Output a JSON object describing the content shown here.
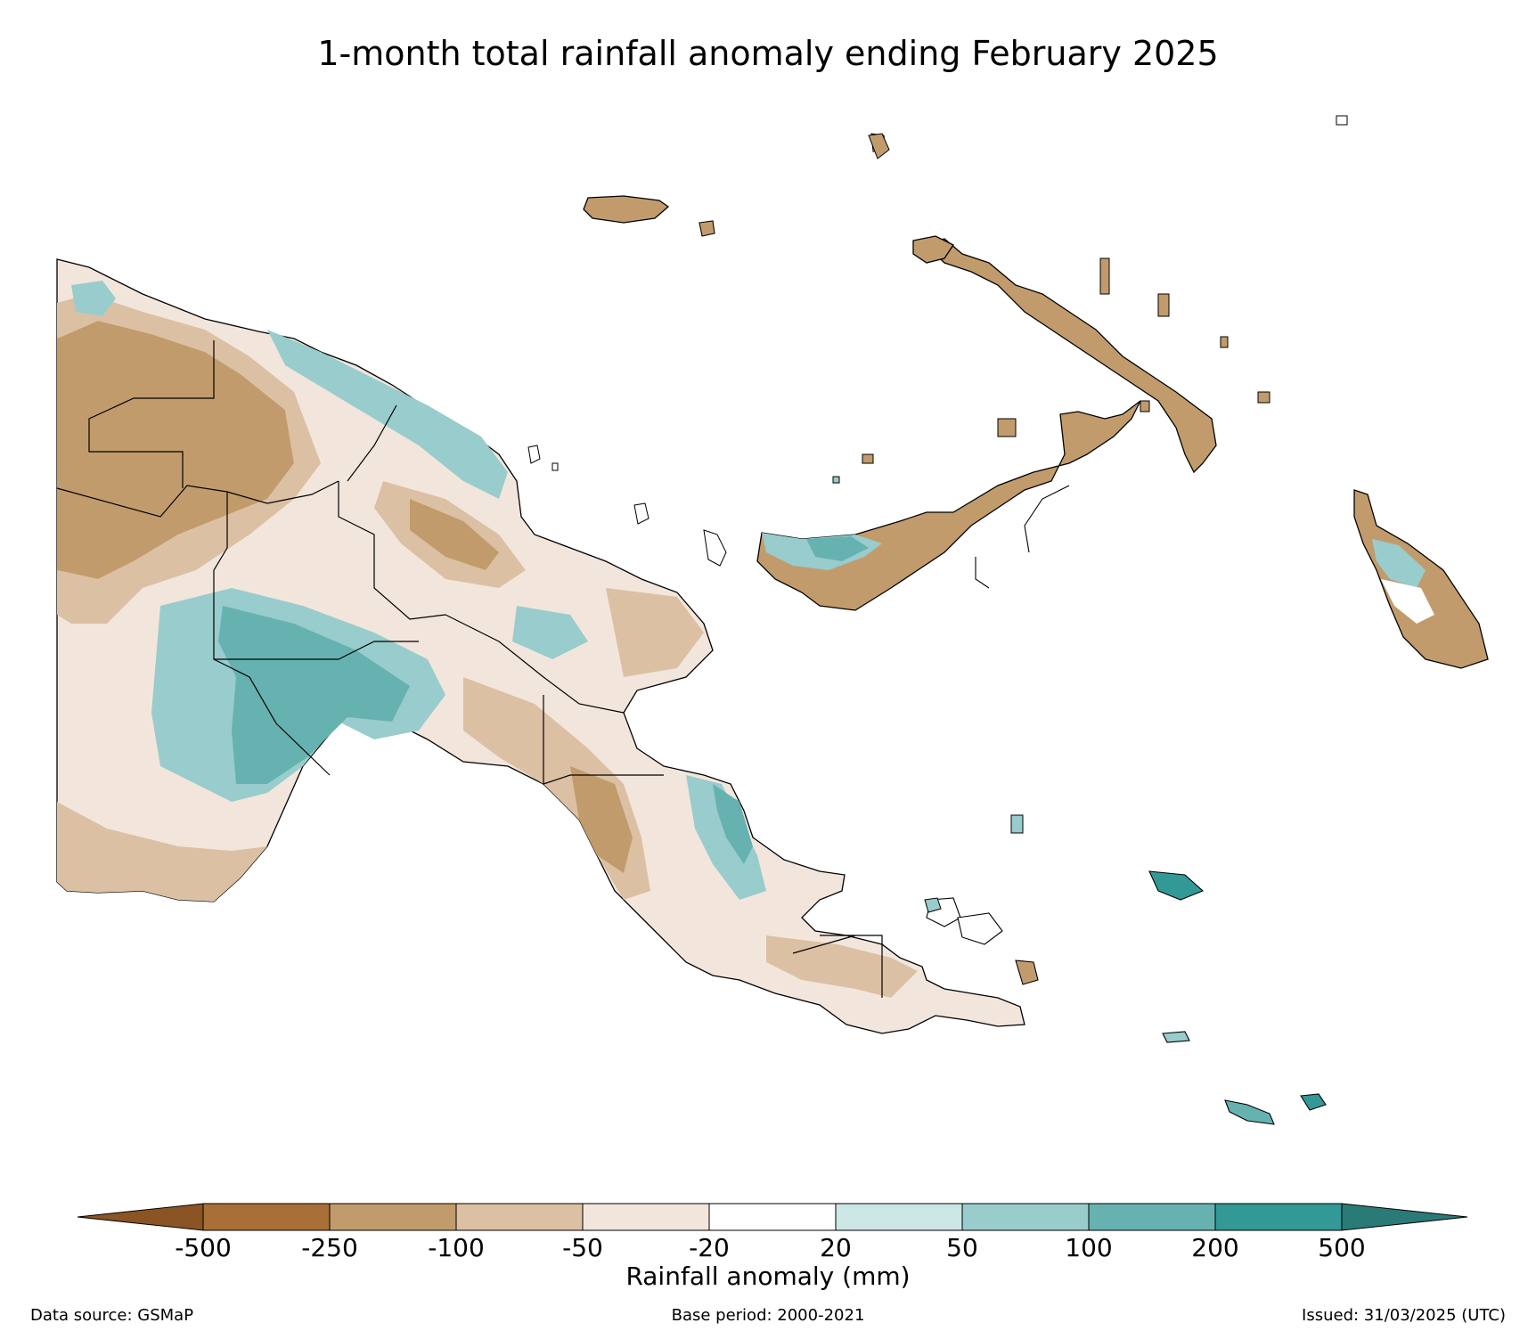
{
  "title": "1-month total rainfall anomaly ending February 2025",
  "colorbar": {
    "label": "Rainfall anomaly (mm)",
    "ticks": [
      "-500",
      "-250",
      "-100",
      "-50",
      "-20",
      "20",
      "50",
      "100",
      "200",
      "500"
    ],
    "extend": "both",
    "colors": {
      "below_min": "#8a5424",
      "bins": [
        "#a87037",
        "#c29b6c",
        "#dcc0a4",
        "#f2e6dc",
        "#ffffff",
        "#cce6e5",
        "#99cccc",
        "#66b2b0",
        "#329996"
      ],
      "above_max": "#2a7a78"
    }
  },
  "footer": {
    "source": "Data source: GSMaP",
    "base_period": "Base period: 2000-2021",
    "issued": "Issued: 31/03/2025 (UTC)"
  }
}
